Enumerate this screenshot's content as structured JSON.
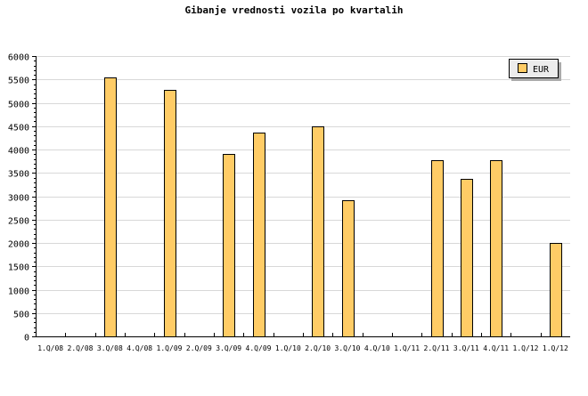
{
  "chart_data": {
    "type": "bar",
    "title": "Gibanje vrednosti vozila po kvartalih",
    "xlabel": "",
    "ylabel": "",
    "ylim": [
      0,
      6000
    ],
    "yticks": [
      0,
      500,
      1000,
      1500,
      2000,
      2500,
      3000,
      3500,
      4000,
      4500,
      5000,
      5500,
      6000
    ],
    "grid": true,
    "legend_position": "top-right",
    "categories": [
      "1.Q/08",
      "2.Q/08",
      "3.Q/08",
      "4.Q/08",
      "1.Q/09",
      "2.Q/09",
      "3.Q/09",
      "4.Q/09",
      "1.Q/10",
      "2.Q/10",
      "3.Q/10",
      "4.Q/10",
      "1.Q/11",
      "2.Q/11",
      "3.Q/11",
      "4.Q/11",
      "1.Q/12",
      "1.Q/12"
    ],
    "series": [
      {
        "name": "EUR",
        "color": "#FFCC66",
        "values": [
          0,
          0,
          5540,
          0,
          5270,
          0,
          3900,
          4360,
          0,
          4490,
          2910,
          0,
          0,
          3770,
          3370,
          3770,
          0,
          2000
        ]
      }
    ]
  }
}
